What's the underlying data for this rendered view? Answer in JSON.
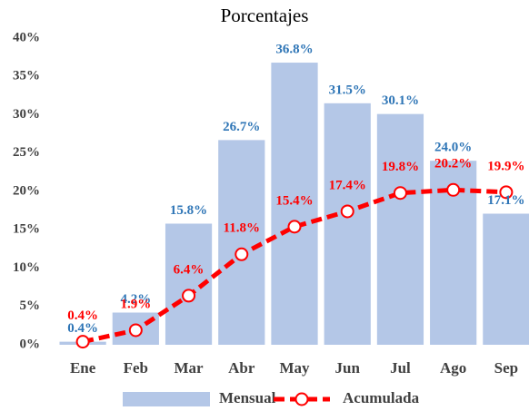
{
  "chart_data": {
    "type": "bar",
    "subtitle": "Porcentajes",
    "categories": [
      "Ene",
      "Feb",
      "Mar",
      "Abr",
      "May",
      "Jun",
      "Jul",
      "Ago",
      "Sep"
    ],
    "series": [
      {
        "name": "Mensual",
        "type": "bar",
        "color": "#b4c7e7",
        "label_color": "#2e75b6",
        "values": [
          0.4,
          4.2,
          15.8,
          26.7,
          36.8,
          31.5,
          30.1,
          24.0,
          17.1
        ],
        "value_labels": [
          "0.4%",
          "4.2%",
          "15.8%",
          "26.7%",
          "36.8%",
          "31.5%",
          "30.1%",
          "24.0%",
          "17.1%"
        ]
      },
      {
        "name": "Acumulada",
        "type": "line",
        "color": "#ff0000",
        "label_color": "#ff0000",
        "values": [
          0.4,
          1.9,
          6.4,
          11.8,
          15.4,
          17.4,
          19.8,
          20.2,
          19.9
        ],
        "value_labels": [
          "0.4%",
          "1.9%",
          "6.4%",
          "11.8%",
          "15.4%",
          "17.4%",
          "19.8%",
          "20.2%",
          "19.9%"
        ]
      }
    ],
    "ylim": [
      0,
      40
    ],
    "yticks": [
      {
        "value": 0,
        "label": "0%"
      },
      {
        "value": 5,
        "label": "5%"
      },
      {
        "value": 10,
        "label": "10%"
      },
      {
        "value": 15,
        "label": "15%"
      },
      {
        "value": 20,
        "label": "20%"
      },
      {
        "value": 25,
        "label": "25%"
      },
      {
        "value": 30,
        "label": "30%"
      },
      {
        "value": 35,
        "label": "35%"
      },
      {
        "value": 40,
        "label": "40%"
      }
    ],
    "legend": "bottom"
  }
}
